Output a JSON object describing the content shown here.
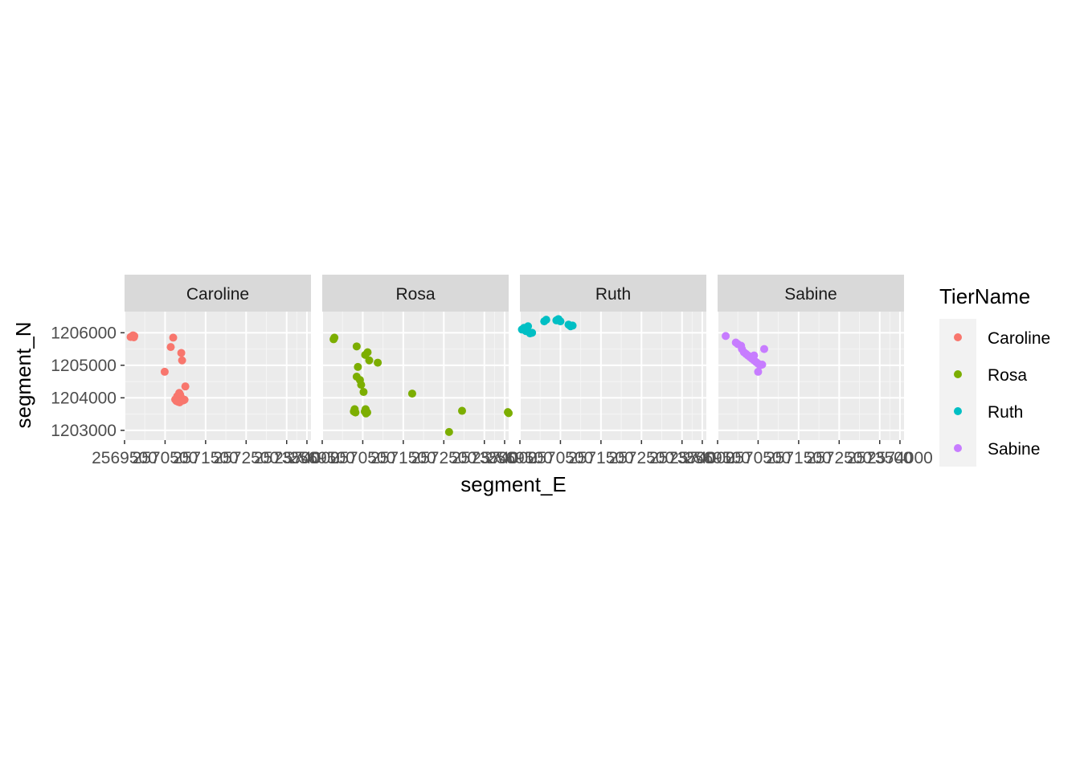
{
  "chart_data": {
    "type": "scatter",
    "xlabel": "segment_E",
    "ylabel": "segment_N",
    "xlim": [
      2569500,
      2574100
    ],
    "ylim": [
      1202700,
      1206650
    ],
    "x_ticks": [
      2569500,
      2570500,
      2571500,
      2572500,
      2573500,
      2574000
    ],
    "x_tick_labels": [
      "2569500",
      "2570500",
      "2571500",
      "2572500",
      "2573500",
      "2574000"
    ],
    "y_ticks": [
      1203000,
      1204000,
      1205000,
      1206000
    ],
    "y_tick_labels": [
      "1203000",
      "1204000",
      "1205000",
      "1206000"
    ],
    "grid": true,
    "legend": {
      "title": "TierName",
      "position": "right",
      "entries": [
        "Caroline",
        "Rosa",
        "Ruth",
        "Sabine"
      ]
    },
    "panels": [
      {
        "name": "Caroline",
        "color": "#F8766D",
        "points": [
          [
            2569690,
            1205900
          ],
          [
            2569700,
            1205880
          ],
          [
            2569710,
            1205920
          ],
          [
            2569730,
            1205860
          ],
          [
            2569650,
            1205870
          ],
          [
            2569740,
            1205900
          ],
          [
            2570700,
            1205850
          ],
          [
            2570640,
            1205560
          ],
          [
            2570900,
            1205380
          ],
          [
            2570920,
            1205150
          ],
          [
            2570490,
            1204800
          ],
          [
            2571000,
            1204350
          ],
          [
            2570850,
            1204150
          ],
          [
            2570870,
            1204100
          ],
          [
            2570800,
            1204050
          ],
          [
            2570900,
            1204000
          ],
          [
            2570750,
            1203950
          ],
          [
            2570950,
            1203920
          ],
          [
            2570820,
            1203880
          ],
          [
            2570980,
            1203940
          ],
          [
            2570860,
            1203860
          ],
          [
            2570780,
            1203900
          ]
        ]
      },
      {
        "name": "Rosa",
        "color": "#7CAE00",
        "points": [
          [
            2569800,
            1205850
          ],
          [
            2569780,
            1205800
          ],
          [
            2570350,
            1205580
          ],
          [
            2570620,
            1205400
          ],
          [
            2570560,
            1205320
          ],
          [
            2570660,
            1205150
          ],
          [
            2570870,
            1205080
          ],
          [
            2570380,
            1204950
          ],
          [
            2570350,
            1204650
          ],
          [
            2570430,
            1204550
          ],
          [
            2570460,
            1204400
          ],
          [
            2570520,
            1204180
          ],
          [
            2571720,
            1204130
          ],
          [
            2570300,
            1203650
          ],
          [
            2570280,
            1203580
          ],
          [
            2570320,
            1203550
          ],
          [
            2570570,
            1203650
          ],
          [
            2570550,
            1203580
          ],
          [
            2570610,
            1203550
          ],
          [
            2570580,
            1203520
          ],
          [
            2572950,
            1203600
          ],
          [
            2574100,
            1203530
          ],
          [
            2574080,
            1203560
          ],
          [
            2572630,
            1202950
          ]
        ]
      },
      {
        "name": "Ruth",
        "color": "#00BFC4",
        "points": [
          [
            2569550,
            1206100
          ],
          [
            2569600,
            1206150
          ],
          [
            2569650,
            1206050
          ],
          [
            2569700,
            1206200
          ],
          [
            2569750,
            1205980
          ],
          [
            2569800,
            1206000
          ],
          [
            2569620,
            1206080
          ],
          [
            2570100,
            1206350
          ],
          [
            2570150,
            1206400
          ],
          [
            2570400,
            1206380
          ],
          [
            2570450,
            1206420
          ],
          [
            2570500,
            1206350
          ],
          [
            2570700,
            1206250
          ],
          [
            2570750,
            1206200
          ],
          [
            2570800,
            1206220
          ]
        ]
      },
      {
        "name": "Sabine",
        "color": "#C77CFF",
        "points": [
          [
            2569700,
            1205900
          ],
          [
            2569950,
            1205700
          ],
          [
            2570000,
            1205650
          ],
          [
            2570080,
            1205600
          ],
          [
            2570100,
            1205500
          ],
          [
            2570150,
            1205400
          ],
          [
            2570200,
            1205350
          ],
          [
            2570250,
            1205300
          ],
          [
            2570300,
            1205250
          ],
          [
            2570350,
            1205200
          ],
          [
            2570400,
            1205150
          ],
          [
            2570450,
            1205100
          ],
          [
            2570500,
            1205050
          ],
          [
            2570550,
            1205000
          ],
          [
            2570600,
            1205020
          ],
          [
            2570400,
            1205300
          ],
          [
            2570500,
            1204800
          ],
          [
            2570650,
            1205500
          ]
        ]
      }
    ]
  }
}
